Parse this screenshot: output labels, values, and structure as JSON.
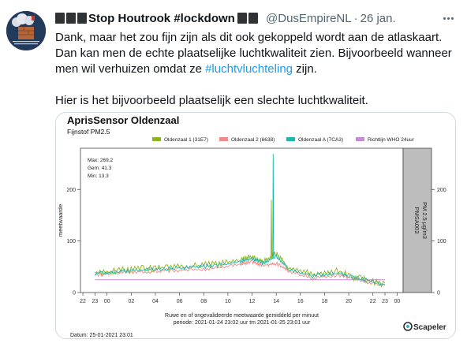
{
  "tweet": {
    "display_name": "Stop Houtrook #lockdown",
    "handle": "@DusEmpireNL",
    "date": "26 jan.",
    "paragraph1_a": "Dank, maar het zou fijn  zijn als dit ook gekoppeld wordt aan de atlaskaart.",
    "paragraph1_b": "Dan kan men de echte plaatselijke luchtkwaliteit zien. Bijvoorbeeld wanneer",
    "paragraph1_c": "men wil verhuizen omdat ze ",
    "hashtag": "#luchtvluchteling",
    "paragraph1_d": " zijn.",
    "paragraph2": "Hier is het bijvoorbeeld plaatselijk een slechte luchtkwaliteit."
  },
  "icons": [
    "more-icon",
    "avatar-image",
    "scapeler-logo-icon"
  ],
  "colors": {
    "accent": "#1d9bf0",
    "series_green": "#8db320",
    "series_red": "#ef8a8a",
    "series_teal": "#19b9b0",
    "series_purple": "#c58ad9",
    "strip_gray": "#bdbdbd"
  },
  "chart_data": {
    "type": "line",
    "title": "AprisSensor  Oldenzaal",
    "subtitle": "Fijnstof PM2.5",
    "ylabel": "meetwaarde",
    "ylim": [
      0,
      280
    ],
    "yticks": [
      0,
      100,
      200
    ],
    "xticks": [
      "22",
      "23",
      "00",
      "02",
      "04",
      "06",
      "08",
      "10",
      "12",
      "14",
      "16",
      "18",
      "20",
      "22",
      "23",
      "00"
    ],
    "stats": {
      "max": "Max: 269.2",
      "gem": "Gem: 41.3",
      "min": "Min: 13.3"
    },
    "strip_label_1": "PMSA003",
    "strip_label_2": "PM 2.5 µg/m3",
    "xlabel_1": "Ruwe en of ongevalideerde meetwaarde gemiddeld per minuut",
    "xlabel_2": "periode:  2021-01-24 23:02 uur tm 2021-01-25 23:01 uur",
    "date_footer": "Datum: 25-01-2021 23:01",
    "brand": "Scapeler",
    "legend_placement": "top",
    "grid": false,
    "x_hours": [
      0,
      2,
      4,
      6,
      8,
      10,
      12,
      13,
      14,
      15,
      16,
      18,
      20,
      22,
      24
    ],
    "series": [
      {
        "name": "Oldenzaal 1 (31E7)",
        "color": "#8db320",
        "values": [
          42,
          47,
          50,
          52,
          55,
          58,
          66,
          73,
          63,
          80,
          52,
          38,
          45,
          32,
          18
        ]
      },
      {
        "name": "Oldenzaal 2 (6638)",
        "color": "#ef8a8a",
        "values": [
          35,
          40,
          42,
          44,
          46,
          49,
          56,
          61,
          55,
          58,
          44,
          30,
          36,
          26,
          14
        ]
      },
      {
        "name": "Oldenzaal A (7CA3)",
        "color": "#19b9b0",
        "values": [
          38,
          43,
          46,
          48,
          51,
          54,
          61,
          68,
          58,
          72,
          48,
          34,
          40,
          29,
          16
        ]
      },
      {
        "name": "Richtlijn WHO 24uur",
        "color": "#c58ad9",
        "values": [
          25,
          25,
          25,
          25,
          25,
          25,
          25,
          25,
          25,
          25,
          25,
          25,
          25,
          25,
          25
        ]
      }
    ],
    "peaks": [
      {
        "series": "Oldenzaal 1 (31E7)",
        "x_hour": 14.6,
        "y": 180
      },
      {
        "series": "Oldenzaal A (7CA3)",
        "x_hour": 14.75,
        "y": 269
      }
    ]
  }
}
